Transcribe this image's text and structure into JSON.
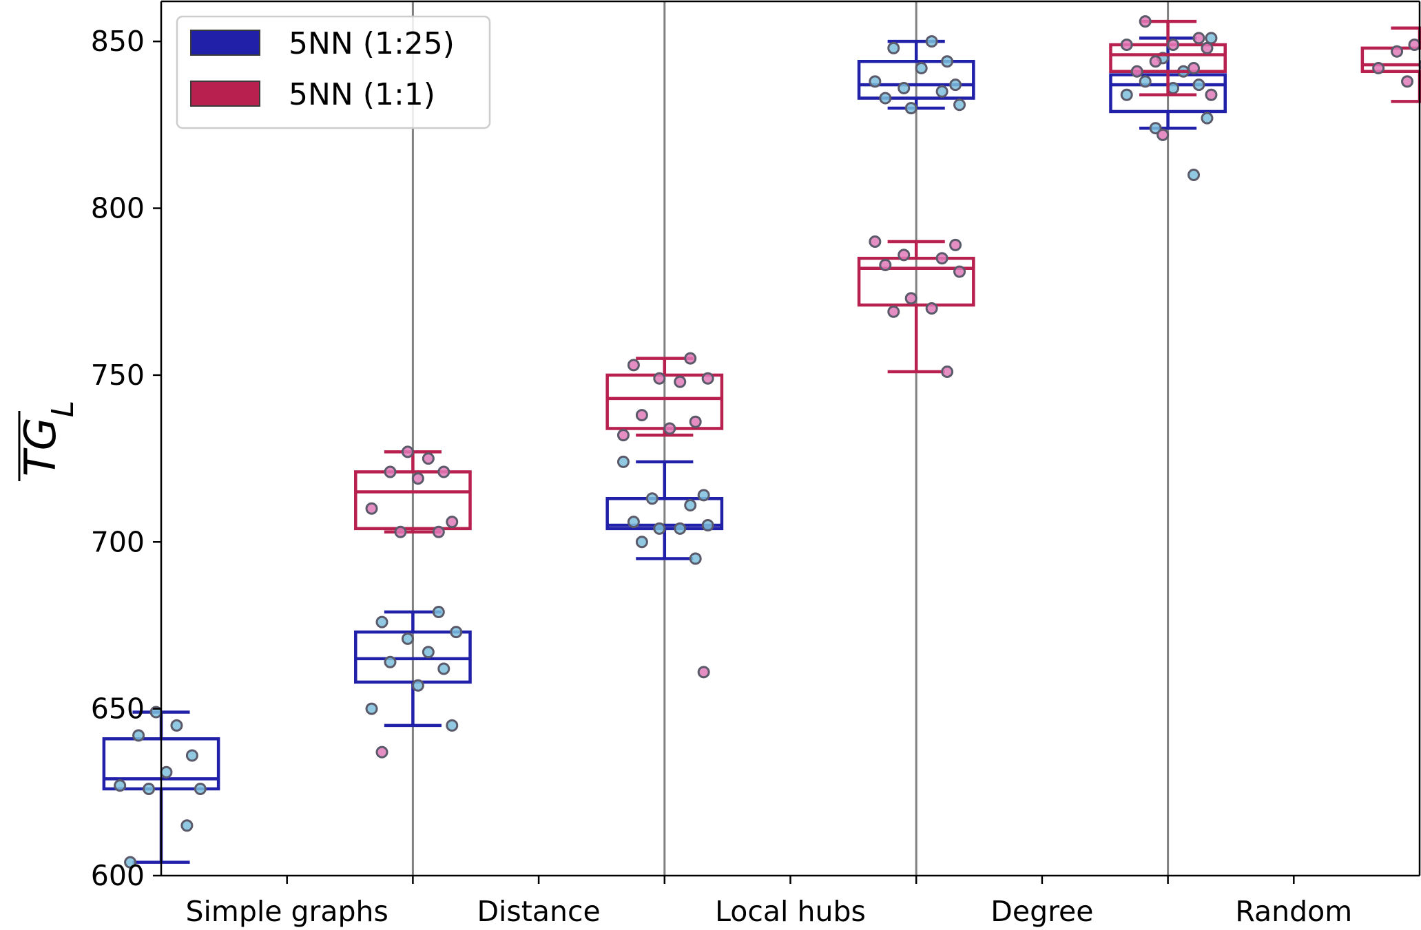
{
  "chart_data": {
    "type": "box",
    "ylabel": "TG",
    "ylabel_subscript": "L",
    "ylabel_overline": true,
    "ylim": [
      600,
      862
    ],
    "yticks": [
      600,
      650,
      700,
      750,
      800,
      850
    ],
    "categories": [
      "Simple graphs",
      "Distance",
      "Local hubs",
      "Degree",
      "Random"
    ],
    "group_separators": true,
    "legend_position": "top-left",
    "series": [
      {
        "name": "5NN (1:25)",
        "color": "#2020a8",
        "point_color": "#7cc0dc",
        "boxes": [
          {
            "whisker_low": 604,
            "q1": 626,
            "median": 629,
            "q3": 641,
            "whisker_high": 649,
            "points": [
              604,
              615,
              626,
              626,
              627,
              631,
              636,
              642,
              645,
              649
            ]
          },
          {
            "whisker_low": 645,
            "q1": 658,
            "median": 665,
            "q3": 673,
            "whisker_high": 679,
            "points": [
              645,
              650,
              657,
              662,
              664,
              667,
              671,
              673,
              676,
              679
            ]
          },
          {
            "whisker_low": 695,
            "q1": 704,
            "median": 705,
            "q3": 713,
            "whisker_high": 724,
            "points": [
              695,
              700,
              704,
              704,
              705,
              706,
              711,
              713,
              714,
              724
            ]
          },
          {
            "whisker_low": 830,
            "q1": 833,
            "median": 837,
            "q3": 844,
            "whisker_high": 850,
            "points": [
              830,
              831,
              833,
              835,
              836,
              837,
              838,
              842,
              844,
              848,
              850
            ]
          },
          {
            "whisker_low": 824,
            "q1": 829,
            "median": 837,
            "q3": 840,
            "whisker_high": 851,
            "points": [
              810,
              824,
              827,
              834,
              836,
              837,
              838,
              841,
              845,
              851
            ]
          }
        ]
      },
      {
        "name": "5NN (1:1)",
        "color": "#b8204f",
        "point_color": "#e07ab8",
        "boxes": [
          {
            "whisker_low": 703,
            "q1": 704,
            "median": 715,
            "q3": 721,
            "whisker_high": 727,
            "points": [
              637,
              703,
              703,
              706,
              710,
              719,
              721,
              721,
              725,
              727
            ]
          },
          {
            "whisker_low": 732,
            "q1": 734,
            "median": 743,
            "q3": 750,
            "whisker_high": 755,
            "points": [
              661,
              732,
              734,
              736,
              738,
              748,
              749,
              749,
              753,
              755
            ]
          },
          {
            "whisker_low": 751,
            "q1": 771,
            "median": 782,
            "q3": 785,
            "whisker_high": 790,
            "points": [
              751,
              769,
              770,
              773,
              781,
              783,
              785,
              786,
              789,
              790
            ]
          },
          {
            "whisker_low": 834,
            "q1": 841,
            "median": 846,
            "q3": 849,
            "whisker_high": 856,
            "points": [
              822,
              834,
              841,
              842,
              844,
              848,
              849,
              849,
              851,
              856
            ]
          },
          {
            "whisker_low": 832,
            "q1": 841,
            "median": 843,
            "q3": 848,
            "whisker_high": 854,
            "points": [
              832,
              838,
              841,
              842,
              843,
              844,
              847,
              848,
              849,
              854
            ]
          }
        ]
      }
    ]
  }
}
